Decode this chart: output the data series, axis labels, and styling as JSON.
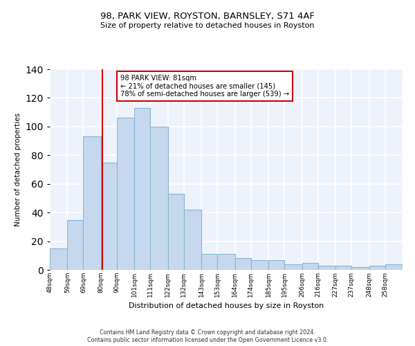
{
  "title": "98, PARK VIEW, ROYSTON, BARNSLEY, S71 4AF",
  "subtitle": "Size of property relative to detached houses in Royston",
  "xlabel": "Distribution of detached houses by size in Royston",
  "ylabel": "Number of detached properties",
  "bin_labels": [
    "48sqm",
    "59sqm",
    "69sqm",
    "80sqm",
    "90sqm",
    "101sqm",
    "111sqm",
    "122sqm",
    "132sqm",
    "143sqm",
    "153sqm",
    "164sqm",
    "174sqm",
    "185sqm",
    "195sqm",
    "206sqm",
    "216sqm",
    "227sqm",
    "237sqm",
    "248sqm",
    "258sqm"
  ],
  "bin_edges": [
    48,
    59,
    69,
    80,
    90,
    101,
    111,
    122,
    132,
    143,
    153,
    164,
    174,
    185,
    195,
    206,
    216,
    227,
    237,
    248,
    258,
    269
  ],
  "bar_heights": [
    15,
    35,
    93,
    75,
    106,
    113,
    100,
    53,
    42,
    11,
    11,
    8,
    7,
    7,
    4,
    5,
    3,
    3,
    2,
    3,
    4
  ],
  "bar_color": "#c5d8ed",
  "bar_edge_color": "#8ab4d4",
  "vline_x": 81,
  "vline_color": "#cc0000",
  "annotation_title": "98 PARK VIEW: 81sqm",
  "annotation_line1": "← 21% of detached houses are smaller (145)",
  "annotation_line2": "78% of semi-detached houses are larger (539) →",
  "annotation_box_color": "#ffffff",
  "annotation_box_edge": "#cc0000",
  "ylim": [
    0,
    140
  ],
  "yticks": [
    0,
    20,
    40,
    60,
    80,
    100,
    120,
    140
  ],
  "footer_line1": "Contains HM Land Registry data © Crown copyright and database right 2024.",
  "footer_line2": "Contains public sector information licensed under the Open Government Licence v3.0.",
  "background_color": "#eef2fb"
}
